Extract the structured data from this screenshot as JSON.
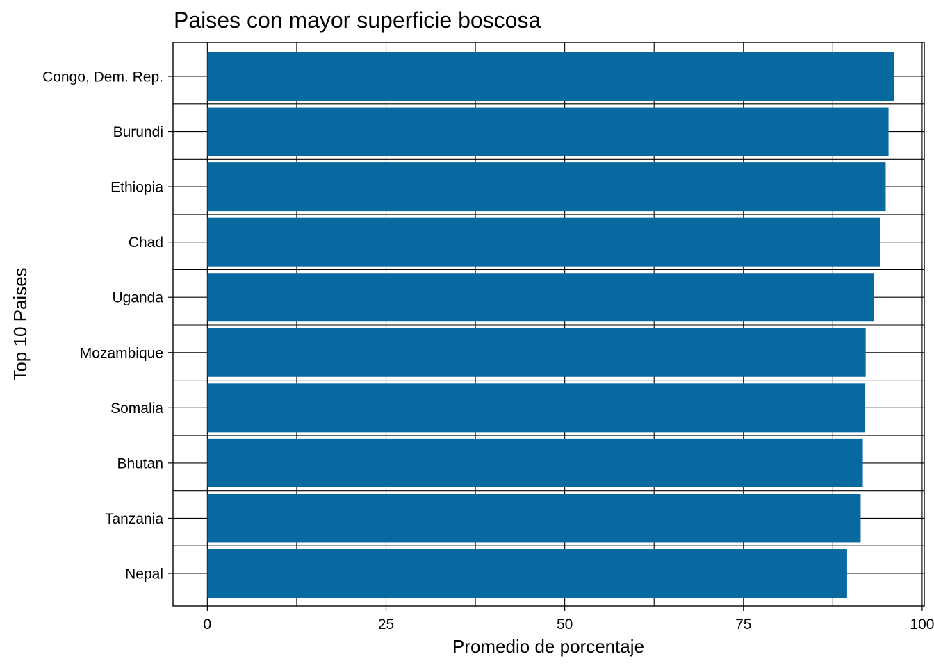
{
  "chart_data": {
    "type": "bar",
    "orientation": "horizontal",
    "title": "Paises con mayor superficie boscosa",
    "xlabel": "Promedio de porcentaje",
    "ylabel": "Top 10 Paises",
    "categories": [
      "Congo, Dem. Rep.",
      "Burundi",
      "Ethiopia",
      "Chad",
      "Uganda",
      "Mozambique",
      "Somalia",
      "Bhutan",
      "Tanzania",
      "Nepal"
    ],
    "values": [
      96.1,
      95.3,
      94.9,
      94.1,
      93.3,
      92.1,
      92.0,
      91.7,
      91.4,
      89.5
    ],
    "xlim": [
      -4.8,
      100.3
    ],
    "xticks": [
      0,
      25,
      50,
      75,
      100
    ],
    "xtick_labels": [
      "0",
      "25",
      "50",
      "75",
      "100"
    ],
    "grid": true,
    "bar_color": "#0868A0"
  }
}
